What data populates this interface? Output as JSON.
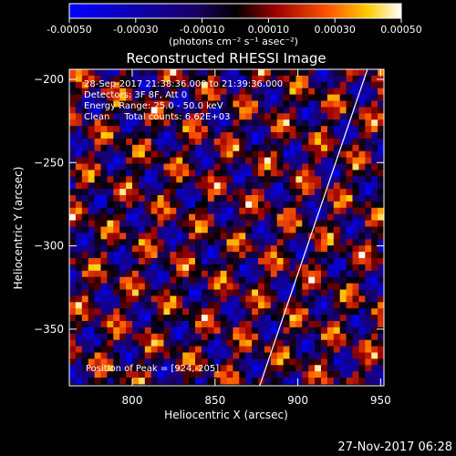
{
  "chart_data": {
    "type": "heatmap",
    "title": "Reconstructed RHESSI Image",
    "xlabel": "Heliocentric X (arcsec)",
    "ylabel": "Heliocentric Y (arcsec)",
    "xlim": [
      762,
      952
    ],
    "ylim": [
      -384,
      -194
    ],
    "x_ticks": [
      800,
      850,
      900,
      950
    ],
    "y_ticks": [
      -200,
      -250,
      -300,
      -350
    ],
    "colorbar": {
      "range": [
        -0.0005,
        0.0005
      ],
      "tick_values": [
        -0.0005,
        -0.0003,
        -0.0001,
        0.0001,
        0.0003,
        0.0005
      ],
      "tick_labels": [
        "-0.00050",
        "-0.00030",
        "-0.00010",
        "0.00010",
        "0.00030",
        "0.00050"
      ],
      "unit_label": "(photons cm⁻² s⁻¹ asec⁻²)"
    },
    "annotations": [
      "28-Sep-2017 21:38:36.000 to 21:39:36.000",
      "Detectors: 3F 8F, Att 0",
      "Energy Range: 25.0 - 50.0 keV",
      "Clean     Total counts: 6.62E+03"
    ],
    "peak_label": "Position of Peak = [924,-205]",
    "peak": [
      924,
      -205
    ],
    "limb_line": [
      [
        877,
        -384
      ],
      [
        942,
        -194
      ]
    ],
    "footer_timestamp": "27-Nov-2017 06:28"
  }
}
